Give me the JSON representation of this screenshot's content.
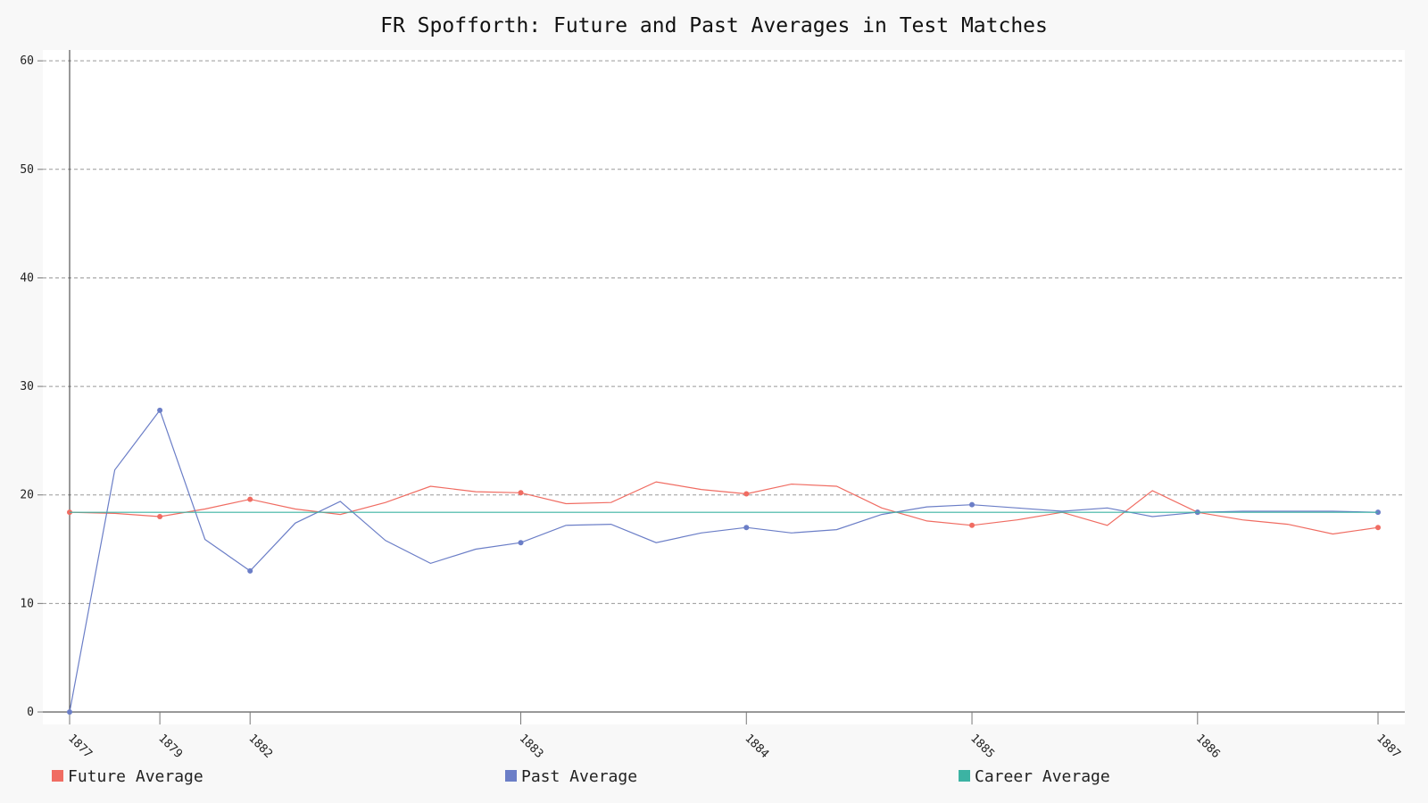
{
  "chart_data": {
    "type": "line",
    "title": "FR Spofforth: Future and Past Averages in Test Matches",
    "xlabel": "",
    "ylabel": "",
    "ylim": [
      0,
      61
    ],
    "y_ticks": [
      0,
      10,
      20,
      30,
      40,
      50,
      60
    ],
    "x_tick_labels": [
      "1877",
      "1879",
      "1882",
      "1883",
      "1884",
      "1885",
      "1886",
      "1887"
    ],
    "x_tick_index": [
      0,
      2,
      4,
      10,
      15,
      20,
      25,
      29
    ],
    "marker_index": [
      0,
      2,
      4,
      10,
      15,
      20,
      25,
      29
    ],
    "grid": true,
    "legend_position": "bottom",
    "series": [
      {
        "name": "Future Average",
        "color": "#f06c62",
        "values": [
          18.4,
          18.3,
          18.0,
          18.7,
          19.6,
          18.7,
          18.2,
          19.3,
          20.8,
          20.3,
          20.2,
          19.2,
          19.3,
          21.2,
          20.5,
          20.1,
          21.0,
          20.8,
          18.8,
          17.6,
          17.2,
          17.7,
          18.4,
          17.2,
          20.4,
          18.4,
          17.7,
          17.3,
          16.4,
          17.0
        ]
      },
      {
        "name": "Past Average",
        "color": "#6b7ec7",
        "values": [
          0,
          22.3,
          27.8,
          15.9,
          13.0,
          17.4,
          19.4,
          15.8,
          13.7,
          15.0,
          15.6,
          17.2,
          17.3,
          15.6,
          16.5,
          17.0,
          16.5,
          16.8,
          18.2,
          18.9,
          19.1,
          18.8,
          18.5,
          18.8,
          18.0,
          18.4,
          18.5,
          18.5,
          18.5,
          18.4
        ]
      },
      {
        "name": "Career Average",
        "color": "#3cb3a3",
        "values": [
          18.4,
          18.4,
          18.4,
          18.4,
          18.4,
          18.4,
          18.4,
          18.4,
          18.4,
          18.4,
          18.4,
          18.4,
          18.4,
          18.4,
          18.4,
          18.4,
          18.4,
          18.4,
          18.4,
          18.4,
          18.4,
          18.4,
          18.4,
          18.4,
          18.4,
          18.4,
          18.4,
          18.4,
          18.4,
          18.4
        ]
      }
    ]
  }
}
